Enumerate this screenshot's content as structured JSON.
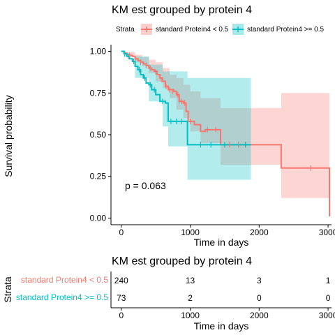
{
  "colors": {
    "group1": "#F8766D",
    "group2": "#00BFC4",
    "axis": "#000000"
  },
  "legend": {
    "title": "Strata",
    "position": "top"
  },
  "chart_data": [
    {
      "type": "line",
      "title": "KM est grouped by protein 4",
      "xlabel": "Time in days",
      "ylabel": "Survival probability",
      "xlim": [
        -150,
        3050
      ],
      "ylim": [
        -0.04,
        1.04
      ],
      "xticks": [
        0,
        1000,
        2000,
        3000
      ],
      "xtick_labels": [
        "0",
        "1000",
        "2000",
        "3000"
      ],
      "yticks": [
        0,
        0.25,
        0.5,
        0.75,
        1
      ],
      "ytick_labels": [
        "0.00",
        "0.25",
        "0.50",
        "0.75",
        "1.00"
      ],
      "grid": false,
      "annotation": "p = 0.063",
      "series": [
        {
          "name": "standard Protein4 < 0.5",
          "steps": [
            [
              0,
              1.0
            ],
            [
              40,
              0.99
            ],
            [
              80,
              0.98
            ],
            [
              120,
              0.975
            ],
            [
              160,
              0.97
            ],
            [
              200,
              0.955
            ],
            [
              240,
              0.945
            ],
            [
              280,
              0.935
            ],
            [
              320,
              0.925
            ],
            [
              360,
              0.915
            ],
            [
              400,
              0.9
            ],
            [
              440,
              0.89
            ],
            [
              480,
              0.88
            ],
            [
              520,
              0.86
            ],
            [
              560,
              0.84
            ],
            [
              600,
              0.82
            ],
            [
              640,
              0.79
            ],
            [
              680,
              0.77
            ],
            [
              760,
              0.76
            ],
            [
              800,
              0.74
            ],
            [
              840,
              0.7
            ],
            [
              900,
              0.69
            ],
            [
              940,
              0.64
            ],
            [
              970,
              0.58
            ],
            [
              1060,
              0.56
            ],
            [
              1150,
              0.52
            ],
            [
              1220,
              0.53
            ],
            [
              1440,
              0.44
            ],
            [
              2320,
              0.3
            ],
            [
              3020,
              0.01
            ]
          ],
          "censored": [
            [
              120,
              0.975
            ],
            [
              200,
              0.955
            ],
            [
              280,
              0.935
            ],
            [
              360,
              0.915
            ],
            [
              420,
              0.9
            ],
            [
              500,
              0.875
            ],
            [
              580,
              0.83
            ],
            [
              650,
              0.79
            ],
            [
              700,
              0.77
            ],
            [
              740,
              0.76
            ],
            [
              820,
              0.74
            ],
            [
              870,
              0.7
            ],
            [
              920,
              0.69
            ],
            [
              1000,
              0.58
            ],
            [
              1250,
              0.53
            ],
            [
              1370,
              0.53
            ],
            [
              1570,
              0.44
            ],
            [
              1700,
              0.44
            ],
            [
              2750,
              0.3
            ]
          ],
          "ci_upper": [
            [
              0,
              1.0
            ],
            [
              100,
              0.995
            ],
            [
              200,
              0.98
            ],
            [
              300,
              0.965
            ],
            [
              400,
              0.95
            ],
            [
              500,
              0.935
            ],
            [
              600,
              0.9
            ],
            [
              700,
              0.86
            ],
            [
              800,
              0.84
            ],
            [
              900,
              0.8
            ],
            [
              1000,
              0.76
            ],
            [
              1150,
              0.72
            ],
            [
              1440,
              0.66
            ],
            [
              2320,
              0.75
            ],
            [
              3020,
              0.75
            ]
          ],
          "ci_lower": [
            [
              0,
              1.0
            ],
            [
              100,
              0.97
            ],
            [
              200,
              0.935
            ],
            [
              300,
              0.91
            ],
            [
              400,
              0.87
            ],
            [
              500,
              0.82
            ],
            [
              600,
              0.78
            ],
            [
              700,
              0.72
            ],
            [
              800,
              0.65
            ],
            [
              900,
              0.6
            ],
            [
              1000,
              0.52
            ],
            [
              1150,
              0.45
            ],
            [
              1440,
              0.32
            ],
            [
              2320,
              0.12
            ],
            [
              3020,
              0.0
            ]
          ]
        },
        {
          "name": "standard Protein4 >= 0.5",
          "steps": [
            [
              0,
              1.0
            ],
            [
              40,
              0.985
            ],
            [
              80,
              0.97
            ],
            [
              120,
              0.955
            ],
            [
              160,
              0.94
            ],
            [
              200,
              0.91
            ],
            [
              240,
              0.89
            ],
            [
              280,
              0.86
            ],
            [
              320,
              0.84
            ],
            [
              360,
              0.81
            ],
            [
              400,
              0.8
            ],
            [
              440,
              0.77
            ],
            [
              500,
              0.74
            ],
            [
              560,
              0.7
            ],
            [
              640,
              0.69
            ],
            [
              680,
              0.58
            ],
            [
              940,
              0.58
            ],
            [
              960,
              0.44
            ],
            [
              1880,
              0.44
            ]
          ],
          "censored": [
            [
              50,
              0.985
            ],
            [
              100,
              0.97
            ],
            [
              180,
              0.94
            ],
            [
              260,
              0.89
            ],
            [
              340,
              0.84
            ],
            [
              420,
              0.8
            ],
            [
              480,
              0.77
            ],
            [
              600,
              0.7
            ],
            [
              720,
              0.58
            ],
            [
              800,
              0.58
            ],
            [
              870,
              0.58
            ],
            [
              1150,
              0.44
            ],
            [
              1300,
              0.44
            ],
            [
              1500,
              0.44
            ],
            [
              1800,
              0.44
            ]
          ],
          "ci_upper": [
            [
              0,
              1.0
            ],
            [
              200,
              0.97
            ],
            [
              400,
              0.92
            ],
            [
              600,
              0.88
            ],
            [
              680,
              0.88
            ],
            [
              960,
              0.84
            ],
            [
              1880,
              0.84
            ]
          ],
          "ci_lower": [
            [
              0,
              1.0
            ],
            [
              200,
              0.84
            ],
            [
              400,
              0.7
            ],
            [
              600,
              0.55
            ],
            [
              680,
              0.43
            ],
            [
              960,
              0.23
            ],
            [
              1880,
              0.23
            ]
          ]
        }
      ]
    },
    {
      "type": "table",
      "title": "KM est grouped by protein 4",
      "xlabel": "Time in days",
      "ylabel": "Strata",
      "xlim": [
        -150,
        3050
      ],
      "xticks": [
        0,
        1000,
        2000,
        3000
      ],
      "xtick_labels": [
        "0",
        "1000",
        "2000",
        "3000"
      ],
      "rows": [
        {
          "label": "standard Protein4 < 0.5",
          "values": [
            "240",
            "13",
            "3",
            "1"
          ]
        },
        {
          "label": "standard Protein4 >= 0.5",
          "values": [
            "73",
            "2",
            "0",
            "0"
          ]
        }
      ]
    }
  ]
}
